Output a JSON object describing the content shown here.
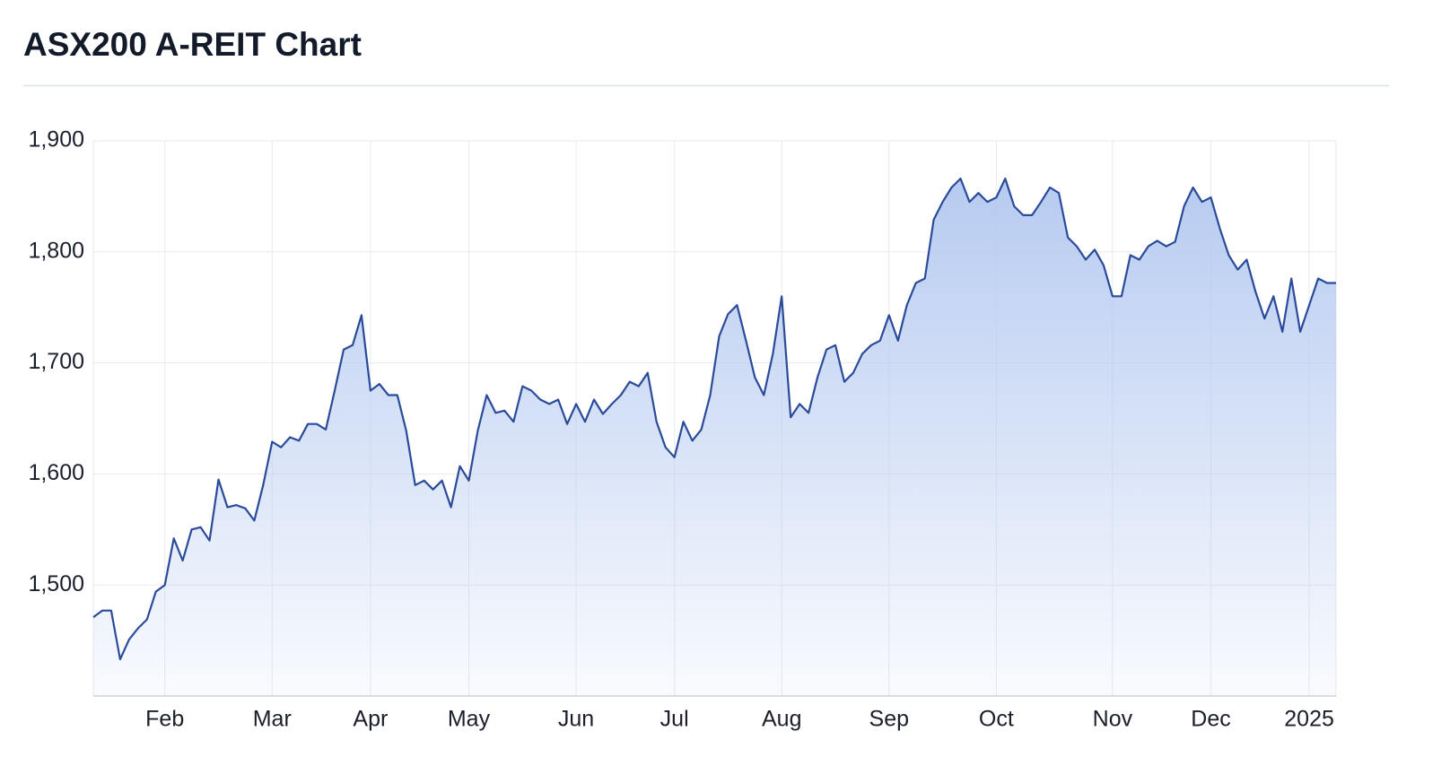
{
  "chart_data": {
    "type": "line",
    "title": "ASX200 A-REIT Chart",
    "categories": [
      null,
      null,
      null,
      null,
      null,
      null,
      null,
      null,
      "Feb",
      null,
      null,
      null,
      null,
      null,
      null,
      null,
      null,
      null,
      null,
      null,
      "Mar",
      null,
      null,
      null,
      null,
      null,
      null,
      null,
      null,
      null,
      null,
      "Apr",
      null,
      null,
      null,
      null,
      null,
      null,
      null,
      null,
      null,
      null,
      "May",
      null,
      null,
      null,
      null,
      null,
      null,
      null,
      null,
      null,
      null,
      null,
      "Jun",
      null,
      null,
      null,
      null,
      null,
      null,
      null,
      null,
      null,
      null,
      "Jul",
      null,
      null,
      null,
      null,
      null,
      null,
      null,
      null,
      null,
      null,
      null,
      "Aug",
      null,
      null,
      null,
      null,
      null,
      null,
      null,
      null,
      null,
      null,
      null,
      "Sep",
      null,
      null,
      null,
      null,
      null,
      null,
      null,
      null,
      null,
      null,
      null,
      "Oct",
      null,
      null,
      null,
      null,
      null,
      null,
      null,
      null,
      null,
      null,
      null,
      null,
      "Nov",
      null,
      null,
      null,
      null,
      null,
      null,
      null,
      null,
      null,
      null,
      "Dec",
      null,
      null,
      null,
      null,
      null,
      null,
      null,
      null,
      null,
      null,
      "2025",
      null,
      null,
      null
    ],
    "series": [
      {
        "name": "ASX200 A-REIT",
        "color": "#2a4a9a",
        "values": [
          1471,
          1477,
          1477,
          1433,
          1451,
          1461,
          1469,
          1494,
          1500,
          1542,
          1522,
          1550,
          1552,
          1540,
          1595,
          1570,
          1572,
          1569,
          1558,
          1590,
          1629,
          1624,
          1633,
          1630,
          1645,
          1645,
          1640,
          1675,
          1712,
          1716,
          1743,
          1675,
          1681,
          1671,
          1671,
          1639,
          1590,
          1594,
          1586,
          1594,
          1570,
          1607,
          1594,
          1639,
          1671,
          1655,
          1657,
          1647,
          1679,
          1675,
          1667,
          1663,
          1667,
          1645,
          1663,
          1647,
          1667,
          1654,
          1663,
          1671,
          1683,
          1679,
          1691,
          1647,
          1624,
          1615,
          1647,
          1630,
          1640,
          1671,
          1724,
          1744,
          1752,
          1720,
          1687,
          1671,
          1708,
          1760,
          1651,
          1663,
          1655,
          1687,
          1712,
          1716,
          1683,
          1691,
          1708,
          1716,
          1720,
          1743,
          1720,
          1752,
          1772,
          1776,
          1829,
          1845,
          1858,
          1866,
          1845,
          1853,
          1845,
          1849,
          1866,
          1841,
          1833,
          1833,
          1845,
          1858,
          1853,
          1813,
          1805,
          1793,
          1802,
          1788,
          1760,
          1760,
          1797,
          1793,
          1805,
          1810,
          1805,
          1809,
          1841,
          1858,
          1845,
          1849,
          1821,
          1797,
          1784,
          1793,
          1764,
          1740,
          1760,
          1728,
          1776,
          1728,
          1752,
          1776,
          1772,
          1772
        ]
      }
    ],
    "ylim": [
      1400,
      1900
    ],
    "yticks": [
      {
        "value": 1500,
        "label": "1,500"
      },
      {
        "value": 1600,
        "label": "1,600"
      },
      {
        "value": 1700,
        "label": "1,700"
      },
      {
        "value": 1800,
        "label": "1,800"
      },
      {
        "value": 1900,
        "label": "1,900"
      }
    ],
    "grid": true,
    "area_fill": true
  }
}
